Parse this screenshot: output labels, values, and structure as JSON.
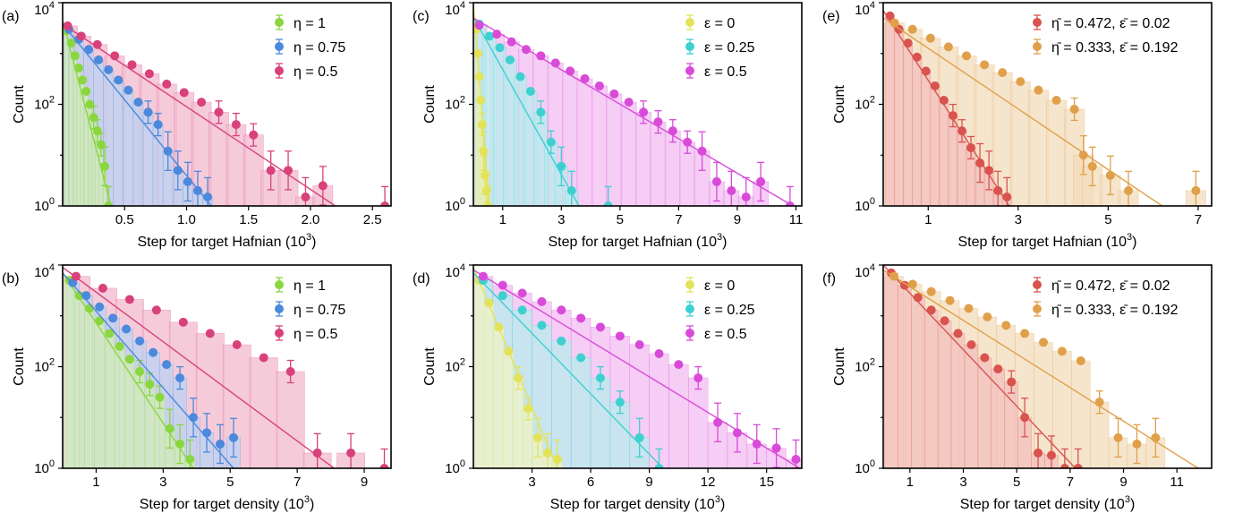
{
  "chart_data": [
    {
      "panel": "(a)",
      "type": "bar+scatter",
      "scale_y": "log",
      "xlabel": "Step for target Hafnian (10",
      "xlabel_exp": "3",
      "xlabel_close": ")",
      "ylabel": "Count",
      "xlim": [
        0,
        2.65
      ],
      "ylim": [
        1,
        10000
      ],
      "xticks": [
        0.5,
        1.0,
        1.5,
        2.0,
        2.5
      ],
      "xtick_labels": [
        "0.5",
        "1.0",
        "1.5",
        "2.0",
        "2.5"
      ],
      "ytick_labels": [
        "10",
        "10",
        "10"
      ],
      "ytick_exps": [
        "0",
        "2",
        "4"
      ],
      "legend_position": "top-right",
      "series": [
        {
          "name": "η = 1",
          "color": "#8ad63f",
          "x": [
            0.03,
            0.07,
            0.1,
            0.13,
            0.16,
            0.19,
            0.22,
            0.25,
            0.28,
            0.31,
            0.34,
            0.37
          ],
          "y": [
            2800,
            1600,
            900,
            520,
            300,
            180,
            100,
            55,
            30,
            16,
            6,
            1
          ],
          "fit": [
            [
              0.0,
              4500
            ],
            [
              0.39,
              1
            ]
          ]
        },
        {
          "name": "η = 0.75",
          "color": "#4a89dc",
          "x": [
            0.05,
            0.13,
            0.21,
            0.29,
            0.37,
            0.45,
            0.53,
            0.61,
            0.69,
            0.77,
            0.85,
            0.93,
            1.01,
            1.09,
            1.17
          ],
          "y": [
            3000,
            1900,
            1200,
            750,
            480,
            300,
            190,
            110,
            70,
            40,
            12,
            5,
            3,
            2,
            1.5
          ],
          "fit": [
            [
              0.0,
              3800
            ],
            [
              1.2,
              1
            ]
          ]
        },
        {
          "name": "η = 0.5",
          "color": "#d9417a",
          "x": [
            0.04,
            0.15,
            0.28,
            0.42,
            0.56,
            0.7,
            0.84,
            0.98,
            1.12,
            1.26,
            1.4,
            1.54,
            1.68,
            1.82,
            1.96,
            2.1,
            2.6
          ],
          "y": [
            3500,
            2200,
            1500,
            900,
            600,
            400,
            250,
            170,
            110,
            70,
            40,
            25,
            5,
            5,
            1.5,
            2.5,
            1
          ],
          "fit": [
            [
              0.0,
              3800
            ],
            [
              2.2,
              1
            ]
          ]
        }
      ]
    },
    {
      "panel": "(c)",
      "type": "bar+scatter",
      "scale_y": "log",
      "xlabel": "Step for target Hafnian (10",
      "xlabel_exp": "3",
      "xlabel_close": ")",
      "ylabel": "Count",
      "xlim": [
        0,
        11.2
      ],
      "ylim": [
        1,
        10000
      ],
      "xticks": [
        1,
        3,
        5,
        7,
        9,
        11
      ],
      "xtick_labels": [
        "1",
        "3",
        "5",
        "7",
        "9",
        "11"
      ],
      "ytick_labels": [
        "10",
        "10",
        "10"
      ],
      "ytick_exps": [
        "0",
        "2",
        "4"
      ],
      "legend_position": "top-right",
      "series": [
        {
          "name": "ε = 0",
          "color": "#e3e35a",
          "x": [
            0.1,
            0.15,
            0.2,
            0.25,
            0.3,
            0.35,
            0.4,
            0.45,
            0.5
          ],
          "y": [
            3000,
            1000,
            350,
            120,
            40,
            12,
            4,
            2,
            1
          ],
          "fit": [
            [
              0.0,
              9000
            ],
            [
              0.55,
              1
            ]
          ]
        },
        {
          "name": "ε = 0.25",
          "color": "#3ed0d0",
          "x": [
            0.2,
            0.55,
            0.9,
            1.25,
            1.6,
            1.95,
            2.3,
            2.65,
            3.0,
            3.35,
            4.6
          ],
          "y": [
            3800,
            2200,
            1300,
            750,
            350,
            180,
            70,
            18,
            6,
            2,
            1
          ],
          "fit": [
            [
              0.0,
              5200
            ],
            [
              3.6,
              1
            ]
          ]
        },
        {
          "name": "ε = 0.5",
          "color": "#d94ad9",
          "x": [
            0.2,
            0.8,
            1.3,
            1.8,
            2.3,
            2.8,
            3.3,
            3.8,
            4.3,
            4.8,
            5.3,
            5.8,
            6.3,
            6.8,
            7.3,
            7.8,
            8.3,
            8.8,
            9.3,
            9.8,
            10.8
          ],
          "y": [
            3600,
            2400,
            1700,
            1200,
            900,
            650,
            450,
            320,
            230,
            160,
            110,
            70,
            45,
            30,
            18,
            12,
            3,
            2,
            1.5,
            3,
            1
          ],
          "fit": [
            [
              0.0,
              5000
            ],
            [
              10.9,
              1
            ]
          ]
        }
      ]
    },
    {
      "panel": "(e)",
      "type": "bar+scatter",
      "scale_y": "log",
      "xlabel": "Step for target Hafnian (10",
      "xlabel_exp": "3",
      "xlabel_close": ")",
      "ylabel": "Count",
      "xlim": [
        0,
        7.3
      ],
      "ylim": [
        1,
        10000
      ],
      "xticks": [
        1,
        3,
        5,
        7
      ],
      "xtick_labels": [
        "1",
        "3",
        "5",
        "7"
      ],
      "ytick_labels": [
        "10",
        "10",
        "10"
      ],
      "ytick_exps": [
        "0",
        "2",
        "4"
      ],
      "legend_position": "top-right",
      "series": [
        {
          "name": "η̄ = 0.472, ε̄ = 0.02",
          "color": "#d9534f",
          "x": [
            0.15,
            0.35,
            0.55,
            0.75,
            0.95,
            1.15,
            1.35,
            1.55,
            1.75,
            1.95,
            2.15,
            2.35,
            2.55,
            2.75
          ],
          "y": [
            5500,
            3000,
            1600,
            850,
            450,
            230,
            120,
            60,
            30,
            14,
            7,
            5,
            2,
            1.5
          ],
          "fit": [
            [
              0.0,
              7000
            ],
            [
              2.8,
              1
            ]
          ]
        },
        {
          "name": "η̄ = 0.333, ε̄ = 0.192",
          "color": "#e0a04a",
          "x": [
            0.25,
            0.65,
            1.05,
            1.45,
            1.85,
            2.25,
            2.65,
            3.05,
            3.45,
            3.85,
            4.25,
            4.45,
            4.65,
            5.05,
            5.45,
            6.95
          ],
          "y": [
            4000,
            3000,
            2000,
            1350,
            900,
            600,
            420,
            280,
            190,
            120,
            80,
            10,
            6,
            4,
            2,
            2
          ],
          "fit": [
            [
              0.0,
              5000
            ],
            [
              6.2,
              1
            ]
          ]
        }
      ]
    },
    {
      "panel": "(b)",
      "type": "bar+scatter",
      "scale_y": "log",
      "xlabel": "Step for target density (10",
      "xlabel_exp": "3",
      "xlabel_close": ")",
      "ylabel": "Count",
      "xlim": [
        0,
        9.8
      ],
      "ylim": [
        1,
        10000
      ],
      "xticks": [
        1,
        3,
        5,
        7,
        9
      ],
      "xtick_labels": [
        "1",
        "3",
        "5",
        "7",
        "9"
      ],
      "ytick_labels": [
        "10",
        "10",
        "10"
      ],
      "ytick_exps": [
        "0",
        "2",
        "4"
      ],
      "legend_position": "top-right",
      "series": [
        {
          "name": "η = 1",
          "color": "#8ad63f",
          "x": [
            0.2,
            0.5,
            0.8,
            1.1,
            1.4,
            1.7,
            2.0,
            2.3,
            2.6,
            2.9,
            3.2,
            3.5,
            3.8
          ],
          "y": [
            5000,
            2500,
            1400,
            800,
            450,
            250,
            140,
            80,
            45,
            25,
            6,
            3,
            1.5
          ],
          "fit": [
            [
              0.0,
              7000
            ],
            [
              3.9,
              1
            ]
          ]
        },
        {
          "name": "η = 0.75",
          "color": "#4a89dc",
          "x": [
            0.3,
            0.7,
            1.1,
            1.5,
            1.9,
            2.3,
            2.7,
            3.1,
            3.5,
            3.9,
            4.3,
            4.7,
            5.1
          ],
          "y": [
            4500,
            2500,
            1500,
            900,
            550,
            320,
            190,
            110,
            60,
            10,
            5,
            3,
            4
          ],
          "fit": [
            [
              0.0,
              7000
            ],
            [
              5.1,
              1
            ]
          ]
        },
        {
          "name": "η = 0.5",
          "color": "#d9417a",
          "x": [
            0.4,
            1.2,
            2.0,
            2.8,
            3.6,
            4.4,
            5.2,
            6.0,
            6.8,
            7.6,
            8.6,
            9.6
          ],
          "y": [
            6000,
            3500,
            2100,
            1300,
            750,
            450,
            270,
            150,
            80,
            2,
            2,
            1
          ],
          "fit": [
            [
              0.0,
              9000
            ],
            [
              8.1,
              1
            ]
          ]
        }
      ]
    },
    {
      "panel": "(d)",
      "type": "bar+scatter",
      "scale_y": "log",
      "xlabel": "Step for target density (10",
      "xlabel_exp": "3",
      "xlabel_close": ")",
      "ylabel": "Count",
      "xlim": [
        0,
        16.8
      ],
      "ylim": [
        1,
        10000
      ],
      "xticks": [
        3,
        6,
        9,
        12,
        15
      ],
      "xtick_labels": [
        "3",
        "6",
        "9",
        "12",
        "15"
      ],
      "ytick_labels": [
        "10",
        "10",
        "10"
      ],
      "ytick_exps": [
        "0",
        "2",
        "4"
      ],
      "legend_position": "top-right",
      "series": [
        {
          "name": "ε = 0",
          "color": "#e3e35a",
          "x": [
            0.3,
            0.8,
            1.3,
            1.8,
            2.3,
            2.8,
            3.3,
            3.8,
            4.3
          ],
          "y": [
            5000,
            1800,
            600,
            200,
            60,
            15,
            4,
            2,
            1.5
          ],
          "fit": [
            [
              0.0,
              9000
            ],
            [
              4.3,
              1
            ]
          ]
        },
        {
          "name": "ε = 0.25",
          "color": "#3ed0d0",
          "x": [
            0.5,
            1.5,
            2.5,
            3.5,
            4.5,
            5.5,
            6.5,
            7.5,
            8.5,
            9.5
          ],
          "y": [
            5000,
            2500,
            1300,
            650,
            320,
            150,
            60,
            20,
            4,
            1
          ],
          "fit": [
            [
              0.0,
              7000
            ],
            [
              9.7,
              1
            ]
          ]
        },
        {
          "name": "ε = 0.5",
          "color": "#d94ad9",
          "x": [
            0.5,
            1.5,
            2.5,
            3.5,
            4.5,
            5.5,
            6.5,
            7.5,
            8.5,
            9.5,
            10.5,
            11.5,
            12.5,
            13.5,
            14.5,
            15.5,
            16.5
          ],
          "y": [
            6000,
            4000,
            2800,
            1900,
            1300,
            900,
            600,
            400,
            270,
            180,
            110,
            60,
            8,
            5,
            3,
            2.5,
            1.5
          ],
          "fit": [
            [
              0.0,
              8000
            ],
            [
              16.7,
              1
            ]
          ]
        }
      ]
    },
    {
      "panel": "(f)",
      "type": "bar+scatter",
      "scale_y": "log",
      "xlabel": "Step for target density (10",
      "xlabel_exp": "3",
      "xlabel_close": ")",
      "ylabel": "Count",
      "xlim": [
        0,
        12.3
      ],
      "ylim": [
        1,
        10000
      ],
      "xticks": [
        1,
        3,
        5,
        7,
        9,
        11
      ],
      "xtick_labels": [
        "1",
        "3",
        "5",
        "7",
        "9",
        "11"
      ],
      "ytick_labels": [
        "10",
        "10",
        "10"
      ],
      "ytick_exps": [
        "0",
        "2",
        "4"
      ],
      "legend_position": "top-right",
      "series": [
        {
          "name": "η̄ = 0.472, ε̄ = 0.02",
          "color": "#d9534f",
          "x": [
            0.3,
            0.8,
            1.3,
            1.8,
            2.3,
            2.8,
            3.3,
            3.8,
            4.3,
            4.8,
            5.3,
            5.8,
            6.3,
            6.8,
            7.3
          ],
          "y": [
            7000,
            4000,
            2300,
            1300,
            800,
            450,
            270,
            150,
            90,
            50,
            10,
            2,
            1.8,
            1,
            1
          ],
          "fit": [
            [
              0.0,
              10000
            ],
            [
              7.2,
              1
            ]
          ]
        },
        {
          "name": "η̄ = 0.333, ε̄ = 0.192",
          "color": "#e0a04a",
          "x": [
            0.4,
            1.1,
            1.8,
            2.5,
            3.2,
            3.9,
            4.6,
            5.3,
            6.0,
            6.7,
            7.4,
            8.1,
            8.8,
            9.5,
            10.2
          ],
          "y": [
            6000,
            4200,
            3000,
            2000,
            1400,
            950,
            650,
            450,
            300,
            200,
            130,
            20,
            4,
            3,
            4
          ],
          "fit": [
            [
              0.0,
              8000
            ],
            [
              11.8,
              1
            ]
          ]
        }
      ]
    }
  ]
}
